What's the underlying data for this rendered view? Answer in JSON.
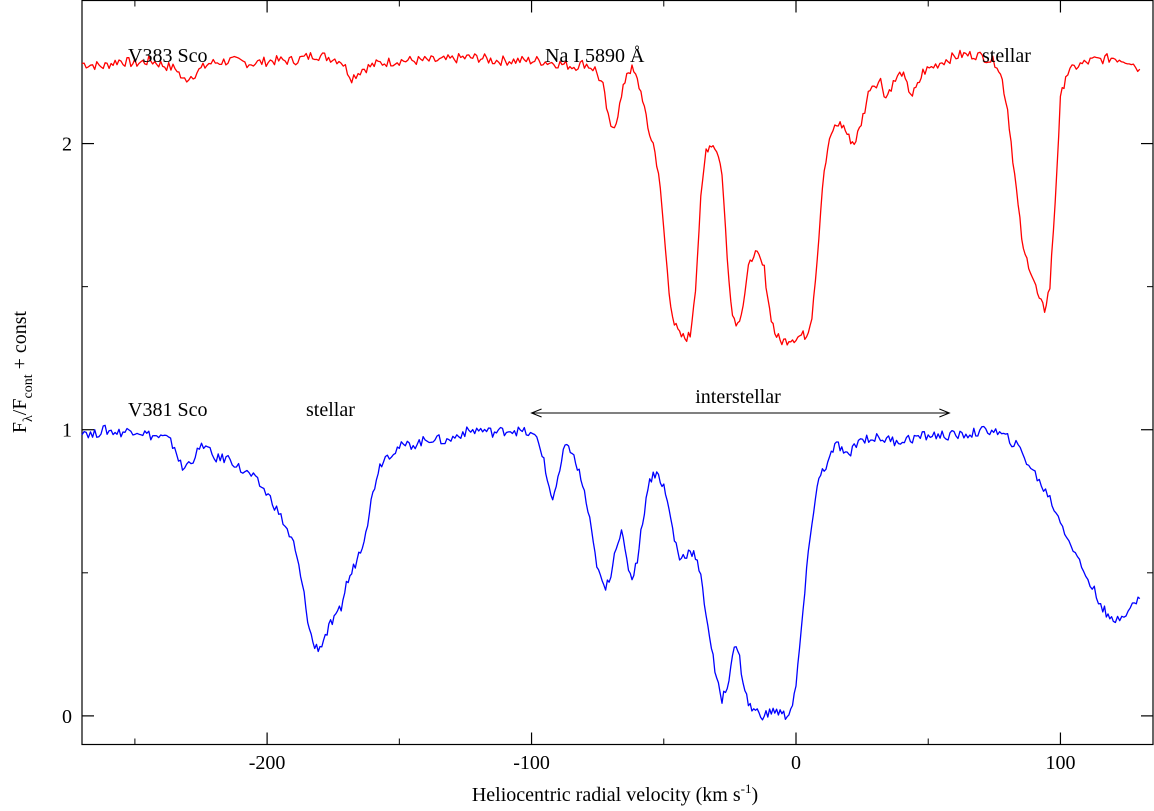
{
  "chart_data": {
    "type": "line",
    "xlabel": "Heliocentric radial velocity (km s",
    "xlabel_sup": "-1",
    "xlabel_close": ")",
    "ylabel": "F",
    "ylabel_sub1": "λ",
    "ylabel_mid": "/F",
    "ylabel_sub2": "cont",
    "ylabel_tail": " + const",
    "xlim": [
      -270,
      135
    ],
    "ylim": [
      -0.1,
      2.5
    ],
    "x_ticks": [
      -200,
      -100,
      0,
      100
    ],
    "x_tick_labels": [
      "-200",
      "-100",
      "0",
      "100"
    ],
    "y_ticks": [
      0,
      1,
      2
    ],
    "y_tick_labels": [
      "0",
      "1",
      "2"
    ],
    "grid": false,
    "annotations": {
      "top_left": "V383 Sco",
      "top_center": "Na I 5890 Å",
      "top_right": "stellar",
      "bottom_left": "V381 Sco",
      "bottom_stellar": "stellar",
      "interstellar": "interstellar",
      "interstellar_range": [
        -100,
        58
      ]
    },
    "series": [
      {
        "name": "V383 Sco",
        "color": "#ff0000",
        "points": [
          [
            -270,
            2.28
          ],
          [
            -262,
            2.27
          ],
          [
            -256,
            2.29
          ],
          [
            -250,
            2.28
          ],
          [
            -244,
            2.29
          ],
          [
            -238,
            2.27
          ],
          [
            -234,
            2.26
          ],
          [
            -232,
            2.22
          ],
          [
            -228,
            2.24
          ],
          [
            -222,
            2.28
          ],
          [
            -214,
            2.29
          ],
          [
            -206,
            2.28
          ],
          [
            -198,
            2.29
          ],
          [
            -190,
            2.29
          ],
          [
            -182,
            2.31
          ],
          [
            -176,
            2.3
          ],
          [
            -172,
            2.29
          ],
          [
            -168,
            2.23
          ],
          [
            -164,
            2.26
          ],
          [
            -158,
            2.28
          ],
          [
            -150,
            2.29
          ],
          [
            -142,
            2.29
          ],
          [
            -134,
            2.29
          ],
          [
            -126,
            2.3
          ],
          [
            -120,
            2.3
          ],
          [
            -114,
            2.29
          ],
          [
            -106,
            2.29
          ],
          [
            -98,
            2.29
          ],
          [
            -90,
            2.28
          ],
          [
            -84,
            2.27
          ],
          [
            -80,
            2.28
          ],
          [
            -76,
            2.26
          ],
          [
            -73,
            2.2
          ],
          [
            -71,
            2.09
          ],
          [
            -70,
            2.05
          ],
          [
            -68,
            2.08
          ],
          [
            -66,
            2.16
          ],
          [
            -64,
            2.25
          ],
          [
            -62,
            2.26
          ],
          [
            -60,
            2.22
          ],
          [
            -58,
            2.16
          ],
          [
            -56,
            2.05
          ],
          [
            -54,
            2.0
          ],
          [
            -52,
            1.9
          ],
          [
            -50,
            1.7
          ],
          [
            -48,
            1.48
          ],
          [
            -46,
            1.37
          ],
          [
            -44,
            1.33
          ],
          [
            -42,
            1.32
          ],
          [
            -40,
            1.33
          ],
          [
            -38,
            1.5
          ],
          [
            -36,
            1.8
          ],
          [
            -34,
            1.98
          ],
          [
            -32,
            2.0
          ],
          [
            -30,
            1.98
          ],
          [
            -28,
            1.9
          ],
          [
            -26,
            1.6
          ],
          [
            -24,
            1.4
          ],
          [
            -22,
            1.37
          ],
          [
            -20,
            1.44
          ],
          [
            -18,
            1.56
          ],
          [
            -16,
            1.62
          ],
          [
            -14,
            1.6
          ],
          [
            -12,
            1.56
          ],
          [
            -10,
            1.42
          ],
          [
            -8,
            1.34
          ],
          [
            -6,
            1.31
          ],
          [
            -4,
            1.31
          ],
          [
            -2,
            1.32
          ],
          [
            0,
            1.32
          ],
          [
            2,
            1.33
          ],
          [
            4,
            1.33
          ],
          [
            6,
            1.4
          ],
          [
            8,
            1.6
          ],
          [
            10,
            1.85
          ],
          [
            12,
            1.98
          ],
          [
            14,
            2.05
          ],
          [
            16,
            2.07
          ],
          [
            18,
            2.06
          ],
          [
            20,
            2.02
          ],
          [
            22,
            2.0
          ],
          [
            24,
            2.05
          ],
          [
            26,
            2.12
          ],
          [
            28,
            2.2
          ],
          [
            32,
            2.22
          ],
          [
            34,
            2.16
          ],
          [
            36,
            2.2
          ],
          [
            40,
            2.25
          ],
          [
            42,
            2.2
          ],
          [
            44,
            2.17
          ],
          [
            46,
            2.2
          ],
          [
            48,
            2.25
          ],
          [
            52,
            2.27
          ],
          [
            56,
            2.29
          ],
          [
            62,
            2.31
          ],
          [
            68,
            2.31
          ],
          [
            72,
            2.3
          ],
          [
            76,
            2.28
          ],
          [
            78,
            2.22
          ],
          [
            80,
            2.12
          ],
          [
            82,
            1.95
          ],
          [
            84,
            1.78
          ],
          [
            86,
            1.62
          ],
          [
            88,
            1.58
          ],
          [
            90,
            1.52
          ],
          [
            92,
            1.45
          ],
          [
            94,
            1.42
          ],
          [
            96,
            1.5
          ],
          [
            98,
            1.8
          ],
          [
            100,
            2.15
          ],
          [
            102,
            2.24
          ],
          [
            106,
            2.27
          ],
          [
            112,
            2.29
          ],
          [
            120,
            2.3
          ],
          [
            126,
            2.29
          ],
          [
            130,
            2.26
          ]
        ]
      },
      {
        "name": "V381 Sco",
        "color": "#0000ff",
        "points": [
          [
            -270,
            1.0
          ],
          [
            -266,
            0.98
          ],
          [
            -262,
            1.0
          ],
          [
            -256,
            0.99
          ],
          [
            -250,
            1.0
          ],
          [
            -244,
            0.98
          ],
          [
            -238,
            0.97
          ],
          [
            -235,
            0.94
          ],
          [
            -232,
            0.86
          ],
          [
            -228,
            0.9
          ],
          [
            -224,
            0.95
          ],
          [
            -220,
            0.9
          ],
          [
            -214,
            0.9
          ],
          [
            -210,
            0.86
          ],
          [
            -206,
            0.84
          ],
          [
            -202,
            0.8
          ],
          [
            -198,
            0.75
          ],
          [
            -194,
            0.68
          ],
          [
            -190,
            0.6
          ],
          [
            -188,
            0.52
          ],
          [
            -186,
            0.42
          ],
          [
            -184,
            0.3
          ],
          [
            -182,
            0.24
          ],
          [
            -180,
            0.24
          ],
          [
            -178,
            0.28
          ],
          [
            -176,
            0.32
          ],
          [
            -174,
            0.34
          ],
          [
            -172,
            0.38
          ],
          [
            -170,
            0.46
          ],
          [
            -168,
            0.5
          ],
          [
            -166,
            0.55
          ],
          [
            -164,
            0.6
          ],
          [
            -162,
            0.68
          ],
          [
            -160,
            0.78
          ],
          [
            -158,
            0.86
          ],
          [
            -156,
            0.9
          ],
          [
            -150,
            0.94
          ],
          [
            -144,
            0.95
          ],
          [
            -138,
            0.97
          ],
          [
            -132,
            0.96
          ],
          [
            -126,
            0.99
          ],
          [
            -120,
            1.0
          ],
          [
            -114,
            0.99
          ],
          [
            -108,
            1.0
          ],
          [
            -102,
            0.99
          ],
          [
            -98,
            0.97
          ],
          [
            -96,
            0.92
          ],
          [
            -94,
            0.82
          ],
          [
            -92,
            0.76
          ],
          [
            -90,
            0.82
          ],
          [
            -88,
            0.92
          ],
          [
            -86,
            0.95
          ],
          [
            -84,
            0.9
          ],
          [
            -82,
            0.85
          ],
          [
            -80,
            0.78
          ],
          [
            -78,
            0.68
          ],
          [
            -76,
            0.56
          ],
          [
            -74,
            0.48
          ],
          [
            -72,
            0.44
          ],
          [
            -70,
            0.5
          ],
          [
            -68,
            0.6
          ],
          [
            -66,
            0.64
          ],
          [
            -64,
            0.54
          ],
          [
            -62,
            0.48
          ],
          [
            -60,
            0.55
          ],
          [
            -58,
            0.68
          ],
          [
            -56,
            0.8
          ],
          [
            -54,
            0.85
          ],
          [
            -52,
            0.84
          ],
          [
            -50,
            0.8
          ],
          [
            -48,
            0.72
          ],
          [
            -46,
            0.62
          ],
          [
            -44,
            0.55
          ],
          [
            -42,
            0.56
          ],
          [
            -40,
            0.58
          ],
          [
            -38,
            0.56
          ],
          [
            -36,
            0.48
          ],
          [
            -34,
            0.36
          ],
          [
            -32,
            0.24
          ],
          [
            -30,
            0.12
          ],
          [
            -28,
            0.06
          ],
          [
            -26,
            0.1
          ],
          [
            -24,
            0.22
          ],
          [
            -22,
            0.24
          ],
          [
            -20,
            0.12
          ],
          [
            -18,
            0.04
          ],
          [
            -16,
            0.02
          ],
          [
            -14,
            0.01
          ],
          [
            -12,
            0.0
          ],
          [
            -10,
            0.01
          ],
          [
            -8,
            0.02
          ],
          [
            -6,
            0.01
          ],
          [
            -4,
            0.0
          ],
          [
            -2,
            0.02
          ],
          [
            0,
            0.1
          ],
          [
            2,
            0.3
          ],
          [
            4,
            0.5
          ],
          [
            6,
            0.68
          ],
          [
            8,
            0.8
          ],
          [
            10,
            0.86
          ],
          [
            12,
            0.88
          ],
          [
            14,
            0.93
          ],
          [
            16,
            0.95
          ],
          [
            18,
            0.92
          ],
          [
            20,
            0.9
          ],
          [
            22,
            0.95
          ],
          [
            26,
            0.97
          ],
          [
            32,
            0.97
          ],
          [
            38,
            0.96
          ],
          [
            44,
            0.97
          ],
          [
            50,
            0.98
          ],
          [
            56,
            0.98
          ],
          [
            62,
            0.98
          ],
          [
            68,
            0.99
          ],
          [
            74,
            1.0
          ],
          [
            80,
            0.97
          ],
          [
            84,
            0.94
          ],
          [
            88,
            0.88
          ],
          [
            92,
            0.82
          ],
          [
            96,
            0.76
          ],
          [
            100,
            0.68
          ],
          [
            104,
            0.6
          ],
          [
            108,
            0.52
          ],
          [
            112,
            0.45
          ],
          [
            116,
            0.38
          ],
          [
            118,
            0.34
          ],
          [
            120,
            0.33
          ],
          [
            124,
            0.36
          ],
          [
            128,
            0.39
          ],
          [
            130,
            0.41
          ]
        ]
      }
    ]
  }
}
